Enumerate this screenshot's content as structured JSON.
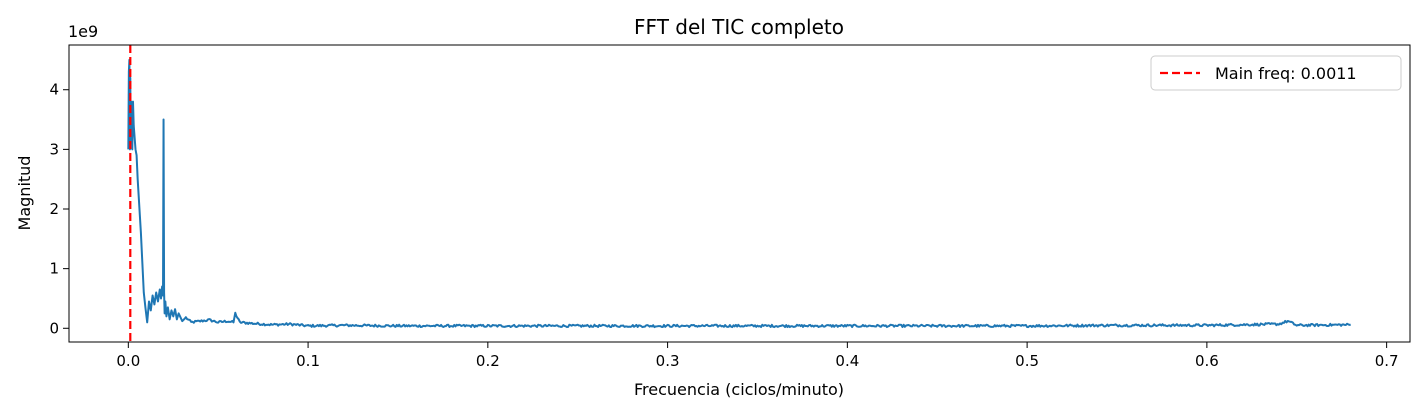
{
  "chart_data": {
    "type": "line",
    "title": "FFT del TIC completo",
    "xlabel": "Frecuencia (ciclos/minuto)",
    "ylabel": "Magnitud",
    "y_scale_label": "1e9",
    "xlim": [
      -0.033,
      0.713
    ],
    "ylim": [
      -0.23,
      4.75
    ],
    "x_ticks": [
      0.0,
      0.1,
      0.2,
      0.3,
      0.4,
      0.5,
      0.6,
      0.7
    ],
    "x_tick_labels": [
      "0.0",
      "0.1",
      "0.2",
      "0.3",
      "0.4",
      "0.5",
      "0.6",
      "0.7"
    ],
    "y_ticks": [
      0,
      1,
      2,
      3,
      4
    ],
    "y_tick_labels": [
      "0",
      "1",
      "2",
      "3",
      "4"
    ],
    "grid": false,
    "legend_position": "top-right",
    "series": [
      {
        "type": "line",
        "color": "#1f77b4",
        "x": [
          0.0,
          0.0003,
          0.0006,
          0.0009,
          0.0011,
          0.0013,
          0.0016,
          0.0019,
          0.0022,
          0.0026,
          0.003,
          0.0035,
          0.004,
          0.0046,
          0.0052,
          0.0058,
          0.0064,
          0.007,
          0.0078,
          0.0086,
          0.0095,
          0.0105,
          0.0115,
          0.0125,
          0.0135,
          0.0145,
          0.0155,
          0.0165,
          0.0175,
          0.0182,
          0.0188,
          0.0193,
          0.0196,
          0.0199,
          0.0202,
          0.0206,
          0.0212,
          0.022,
          0.023,
          0.024,
          0.025,
          0.026,
          0.027,
          0.028,
          0.03,
          0.032,
          0.035,
          0.04,
          0.045,
          0.05,
          0.055,
          0.0585,
          0.0595,
          0.062,
          0.07,
          0.08,
          0.09,
          0.1,
          0.12,
          0.15,
          0.2,
          0.25,
          0.3,
          0.35,
          0.4,
          0.45,
          0.5,
          0.55,
          0.6,
          0.64,
          0.645,
          0.65,
          0.68
        ],
        "y": [
          3.0,
          4.3,
          4.5,
          3.0,
          4.2,
          3.1,
          3.8,
          3.7,
          3.0,
          3.8,
          3.4,
          3.2,
          3.0,
          2.9,
          2.5,
          2.2,
          1.9,
          1.6,
          1.1,
          0.6,
          0.35,
          0.1,
          0.45,
          0.3,
          0.55,
          0.4,
          0.6,
          0.45,
          0.65,
          0.5,
          0.7,
          0.55,
          3.5,
          0.6,
          0.25,
          0.45,
          0.2,
          0.35,
          0.15,
          0.3,
          0.2,
          0.32,
          0.15,
          0.25,
          0.12,
          0.18,
          0.1,
          0.12,
          0.14,
          0.1,
          0.12,
          0.1,
          0.25,
          0.1,
          0.08,
          0.06,
          0.07,
          0.04,
          0.05,
          0.04,
          0.04,
          0.04,
          0.04,
          0.04,
          0.04,
          0.04,
          0.04,
          0.05,
          0.05,
          0.07,
          0.12,
          0.05,
          0.06
        ],
        "noise_amplitude": 0.02
      },
      {
        "type": "vline",
        "name": "Main freq: 0.0011",
        "x": 0.0011,
        "color": "#ff0000",
        "style": "dashed"
      }
    ]
  }
}
